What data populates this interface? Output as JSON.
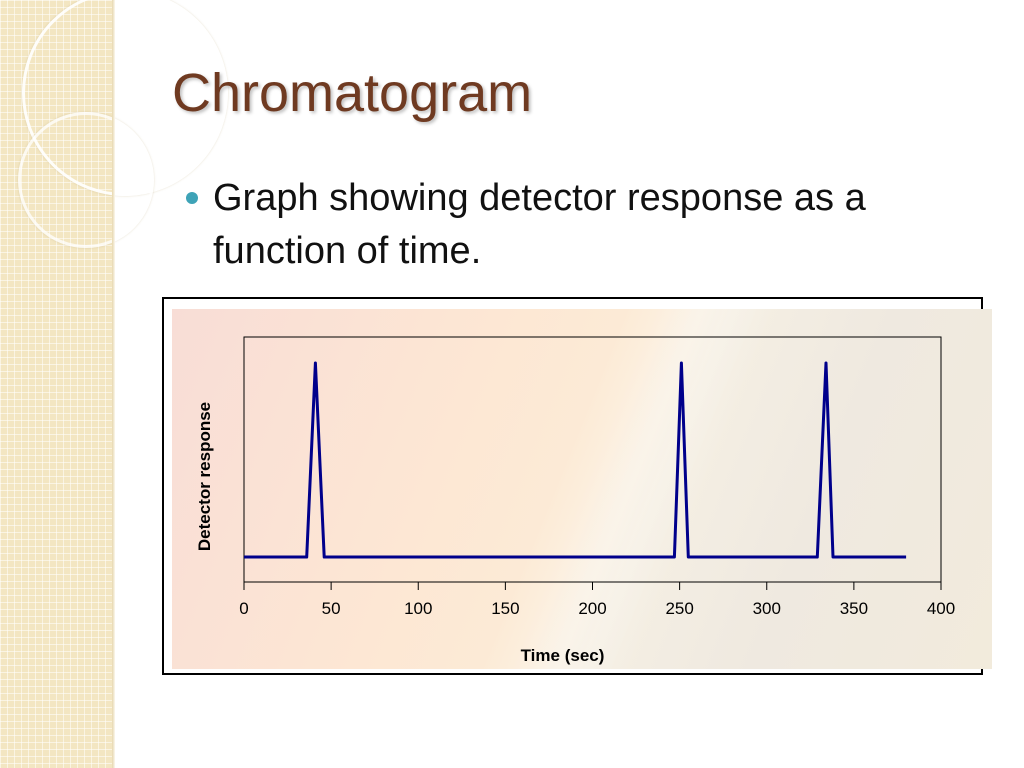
{
  "slide": {
    "title": "Chromatogram",
    "bullets": [
      "Graph showing detector response as a function of time."
    ]
  },
  "colors": {
    "title": "#6f3a21",
    "bullet": "#3ea3b7",
    "series": "#00008b"
  },
  "chart_data": {
    "type": "line",
    "title": "",
    "xlabel": "Time (sec)",
    "ylabel": "Detector response",
    "xlim": [
      0,
      400
    ],
    "ylim": [
      0,
      1.1
    ],
    "xticks": [
      0,
      50,
      100,
      150,
      200,
      250,
      300,
      350,
      400
    ],
    "yticks": [],
    "grid": false,
    "legend": "none",
    "series": [
      {
        "x": [
          0,
          36,
          41,
          46,
          247,
          251,
          255,
          329,
          334,
          338,
          380
        ],
        "y": [
          0,
          0,
          1,
          0,
          0,
          1,
          0,
          0,
          1,
          0,
          0
        ]
      }
    ]
  }
}
